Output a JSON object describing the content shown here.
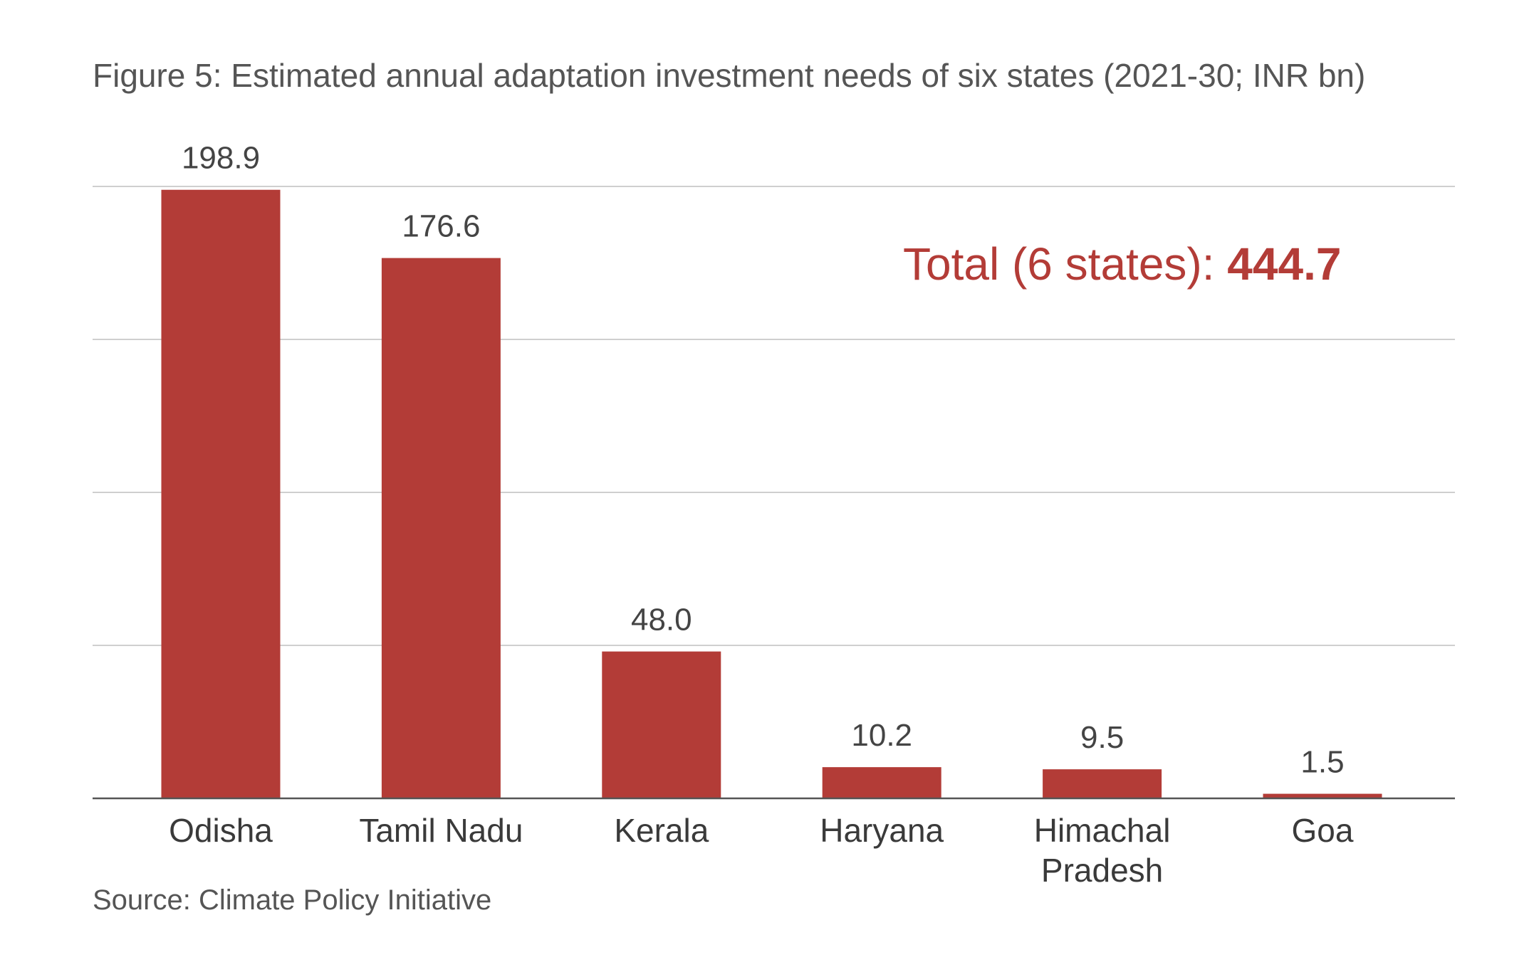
{
  "chart_data": {
    "type": "bar",
    "title": "Figure 5: Estimated annual adaptation investment needs of six states (2021-30; INR bn)",
    "categories": [
      "Odisha",
      "Tamil Nadu",
      "Kerala",
      "Haryana",
      "Himachal Pradesh",
      "Goa"
    ],
    "category_lines": [
      [
        "Odisha"
      ],
      [
        "Tamil Nadu"
      ],
      [
        "Kerala"
      ],
      [
        "Haryana"
      ],
      [
        "Himachal",
        "Pradesh"
      ],
      [
        "Goa"
      ]
    ],
    "values": [
      198.9,
      176.6,
      48.0,
      10.2,
      9.5,
      1.5
    ],
    "value_labels": [
      "198.9",
      "176.6",
      "48.0",
      "10.2",
      "9.5",
      "1.5"
    ],
    "ylim": [
      0,
      200
    ],
    "gridlines": [
      0,
      50,
      100,
      150,
      200
    ],
    "grid": true,
    "bar_color": "#b33c37",
    "annotation": {
      "prefix": "Total (6 states): ",
      "value": "444.7"
    },
    "source": "Source: Climate Policy Initiative"
  }
}
